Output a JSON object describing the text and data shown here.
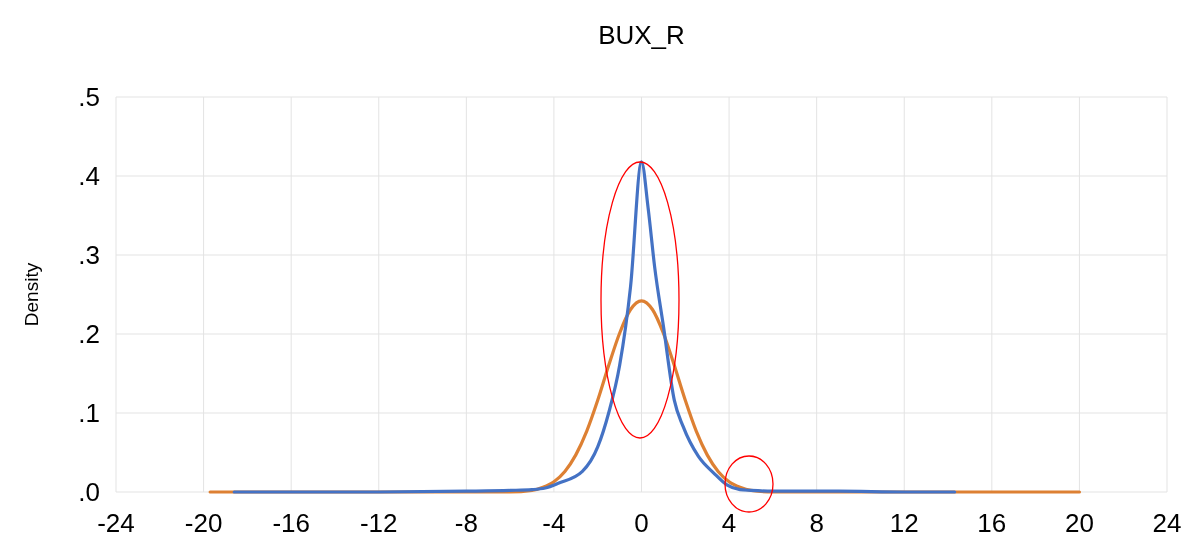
{
  "chart_data": {
    "type": "line",
    "title": "BUX_R",
    "ylabel": "Density",
    "xlim": [
      -24,
      24
    ],
    "xticks": [
      -24,
      -20,
      -16,
      -12,
      -8,
      -4,
      0,
      4,
      8,
      12,
      16,
      20,
      24
    ],
    "ylim": [
      0,
      0.5
    ],
    "yticks": [
      {
        "value": 0,
        "label": ".0"
      },
      {
        "value": 0.1,
        "label": ".1"
      },
      {
        "value": 0.2,
        "label": ".2"
      },
      {
        "value": 0.3,
        "label": ".3"
      },
      {
        "value": 0.4,
        "label": ".4"
      },
      {
        "value": 0.5,
        "label": ".5"
      }
    ],
    "grid": true,
    "marker": "none",
    "line_style": "solid",
    "series": [
      {
        "color": "#dd8033",
        "x": [
          -19.7,
          -12,
          -8,
          -6,
          -5,
          -4.5,
          -4,
          -3.5,
          -3,
          -2.5,
          -2,
          -1.5,
          -1,
          -0.5,
          0,
          0.5,
          1,
          1.5,
          2,
          2.5,
          3,
          3.5,
          4,
          4.5,
          5,
          6,
          8,
          12,
          20
        ],
        "values": [
          0,
          0,
          0,
          0,
          0.002,
          0.006,
          0.013,
          0.026,
          0.047,
          0.077,
          0.116,
          0.16,
          0.201,
          0.231,
          0.242,
          0.231,
          0.201,
          0.16,
          0.116,
          0.077,
          0.047,
          0.026,
          0.013,
          0.006,
          0.002,
          0,
          0,
          0,
          0
        ]
      },
      {
        "color": "#4472c4",
        "x": [
          -18.6,
          -16,
          -12,
          -8,
          -6,
          -5,
          -4.4,
          -3.8,
          -2.7,
          -2,
          -1.5,
          -1,
          -0.5,
          0,
          0.3,
          0.6,
          1,
          1.5,
          1.9,
          2.6,
          3.3,
          3.9,
          4.5,
          5,
          6,
          7,
          9,
          12,
          14.3
        ],
        "values": [
          0,
          0,
          0,
          0.001,
          0.002,
          0.003,
          0.005,
          0.011,
          0.026,
          0.057,
          0.1,
          0.16,
          0.26,
          0.418,
          0.36,
          0.285,
          0.21,
          0.116,
          0.083,
          0.045,
          0.024,
          0.009,
          0.003,
          0.002,
          0.001,
          0.001,
          0.001,
          0,
          0
        ]
      }
    ]
  }
}
